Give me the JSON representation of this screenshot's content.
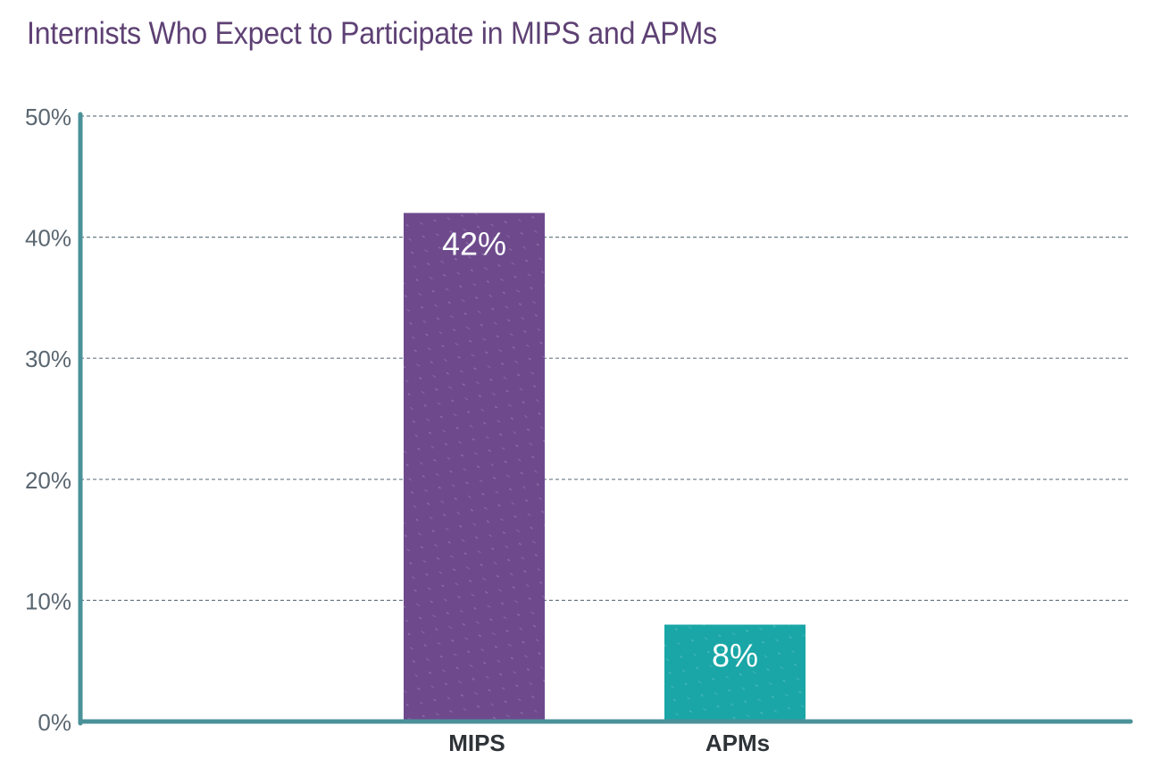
{
  "chart_data": {
    "type": "bar",
    "title": "Internists Who Expect to Participate in MIPS and APMs",
    "xlabel": "",
    "ylabel": "",
    "categories": [
      "MIPS",
      "APMs"
    ],
    "values": [
      42,
      8
    ],
    "data_labels": [
      "42%",
      "8%"
    ],
    "colors": [
      "#6e4a8d",
      "#1aa6a6"
    ],
    "ylim": [
      0,
      50
    ],
    "yticks": [
      0,
      10,
      20,
      30,
      40,
      50
    ],
    "ytick_labels": [
      "0%",
      "10%",
      "20%",
      "30%",
      "40%",
      "50%"
    ],
    "grid": true,
    "grid_style": "dashed",
    "legend": "none",
    "axis_color": "#4a9199",
    "title_color": "#5e4174"
  }
}
